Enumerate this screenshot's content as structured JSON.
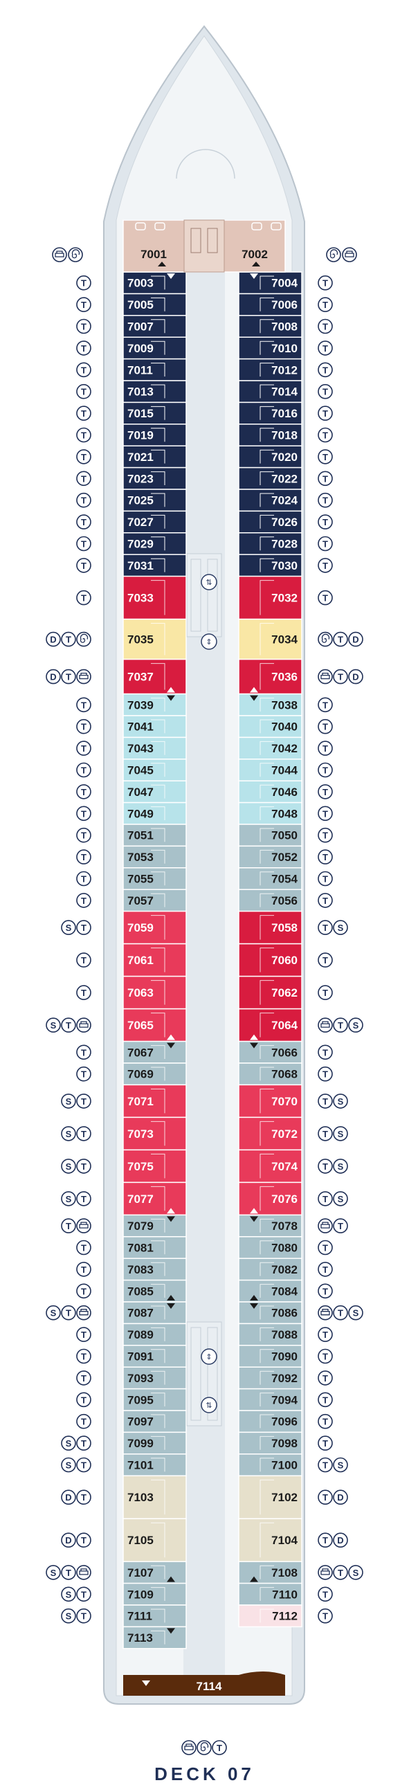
{
  "deck": {
    "title": "DECK 07"
  },
  "colors": {
    "navy": "#1d2b4f",
    "red": "#d81c3f",
    "yellow": "#f9e7a5",
    "pink": "#e83a5a",
    "lightblue": "#b7e3ea",
    "grayblue": "#a8c1c9",
    "tan": "#e6e0cb",
    "salmon": "#e2c5b9",
    "brown": "#5a2b0c",
    "palepink": "#f9e2e6",
    "hull": "#dfe6ec",
    "deckfill": "#f2f5f7",
    "corridor": "#e3e9ee"
  },
  "symbols": {
    "T": "T",
    "S": "S",
    "D": "D"
  },
  "forward_suites": [
    {
      "number": "7001",
      "color": "salmon"
    },
    {
      "number": "7002",
      "color": "salmon"
    }
  ],
  "aft_suite": {
    "number": "7114",
    "color": "brown"
  },
  "port_cabins": [
    {
      "number": "7003",
      "color": "navy",
      "icons": [
        "T"
      ]
    },
    {
      "number": "7005",
      "color": "navy",
      "icons": [
        "T"
      ]
    },
    {
      "number": "7007",
      "color": "navy",
      "icons": [
        "T"
      ]
    },
    {
      "number": "7009",
      "color": "navy",
      "icons": [
        "T"
      ]
    },
    {
      "number": "7011",
      "color": "navy",
      "icons": [
        "T"
      ]
    },
    {
      "number": "7013",
      "color": "navy",
      "icons": [
        "T"
      ]
    },
    {
      "number": "7015",
      "color": "navy",
      "icons": [
        "T"
      ]
    },
    {
      "number": "7019",
      "color": "navy",
      "icons": [
        "T"
      ]
    },
    {
      "number": "7021",
      "color": "navy",
      "icons": [
        "T"
      ]
    },
    {
      "number": "7023",
      "color": "navy",
      "icons": [
        "T"
      ]
    },
    {
      "number": "7025",
      "color": "navy",
      "icons": [
        "T"
      ]
    },
    {
      "number": "7027",
      "color": "navy",
      "icons": [
        "T"
      ]
    },
    {
      "number": "7029",
      "color": "navy",
      "icons": [
        "T"
      ]
    },
    {
      "number": "7031",
      "color": "navy",
      "icons": [
        "T"
      ]
    },
    {
      "number": "7033",
      "color": "red",
      "icons": [
        "T"
      ]
    },
    {
      "number": "7035",
      "color": "yellow",
      "icons": [
        "D",
        "T",
        "spiral"
      ]
    },
    {
      "number": "7037",
      "color": "red",
      "icons": [
        "D",
        "T",
        "sofa"
      ]
    },
    {
      "number": "7039",
      "color": "lightblue",
      "icons": [
        "T"
      ]
    },
    {
      "number": "7041",
      "color": "lightblue",
      "icons": [
        "T"
      ]
    },
    {
      "number": "7043",
      "color": "lightblue",
      "icons": [
        "T"
      ]
    },
    {
      "number": "7045",
      "color": "lightblue",
      "icons": [
        "T"
      ]
    },
    {
      "number": "7047",
      "color": "lightblue",
      "icons": [
        "T"
      ]
    },
    {
      "number": "7049",
      "color": "lightblue",
      "icons": [
        "T"
      ]
    },
    {
      "number": "7051",
      "color": "grayblue",
      "icons": [
        "T"
      ]
    },
    {
      "number": "7053",
      "color": "grayblue",
      "icons": [
        "T"
      ]
    },
    {
      "number": "7055",
      "color": "grayblue",
      "icons": [
        "T"
      ]
    },
    {
      "number": "7057",
      "color": "grayblue",
      "icons": [
        "T"
      ]
    },
    {
      "number": "7059",
      "color": "pink",
      "icons": [
        "S",
        "T"
      ]
    },
    {
      "number": "7061",
      "color": "pink",
      "icons": [
        "T"
      ]
    },
    {
      "number": "7063",
      "color": "pink",
      "icons": [
        "T"
      ]
    },
    {
      "number": "7065",
      "color": "pink",
      "icons": [
        "S",
        "T",
        "sofa"
      ]
    },
    {
      "number": "7067",
      "color": "grayblue",
      "icons": [
        "T"
      ]
    },
    {
      "number": "7069",
      "color": "grayblue",
      "icons": [
        "T"
      ]
    },
    {
      "number": "7071",
      "color": "pink",
      "icons": [
        "S",
        "T"
      ]
    },
    {
      "number": "7073",
      "color": "pink",
      "icons": [
        "S",
        "T"
      ]
    },
    {
      "number": "7075",
      "color": "pink",
      "icons": [
        "S",
        "T"
      ]
    },
    {
      "number": "7077",
      "color": "pink",
      "icons": [
        "S",
        "T"
      ]
    },
    {
      "number": "7079",
      "color": "grayblue",
      "icons": [
        "T",
        "sofa"
      ]
    },
    {
      "number": "7081",
      "color": "grayblue",
      "icons": [
        "T"
      ]
    },
    {
      "number": "7083",
      "color": "grayblue",
      "icons": [
        "T"
      ]
    },
    {
      "number": "7085",
      "color": "grayblue",
      "icons": [
        "T"
      ]
    },
    {
      "number": "7087",
      "color": "grayblue",
      "icons": [
        "S",
        "T",
        "sofa"
      ]
    },
    {
      "number": "7089",
      "color": "grayblue",
      "icons": [
        "T"
      ]
    },
    {
      "number": "7091",
      "color": "grayblue",
      "icons": [
        "T"
      ]
    },
    {
      "number": "7093",
      "color": "grayblue",
      "icons": [
        "T"
      ]
    },
    {
      "number": "7095",
      "color": "grayblue",
      "icons": [
        "T"
      ]
    },
    {
      "number": "7097",
      "color": "grayblue",
      "icons": [
        "T"
      ]
    },
    {
      "number": "7099",
      "color": "grayblue",
      "icons": [
        "S",
        "T"
      ]
    },
    {
      "number": "7101",
      "color": "grayblue",
      "icons": [
        "S",
        "T"
      ]
    },
    {
      "number": "7103",
      "color": "tan",
      "icons": [
        "D",
        "T"
      ]
    },
    {
      "number": "7105",
      "color": "tan",
      "icons": [
        "D",
        "T"
      ]
    },
    {
      "number": "7107",
      "color": "grayblue",
      "icons": [
        "S",
        "T",
        "sofa"
      ]
    },
    {
      "number": "7109",
      "color": "grayblue",
      "icons": [
        "S",
        "T"
      ]
    },
    {
      "number": "7111",
      "color": "grayblue",
      "icons": [
        "S",
        "T"
      ]
    },
    {
      "number": "7113",
      "color": "grayblue",
      "icons": []
    }
  ],
  "starboard_cabins": [
    {
      "number": "7004",
      "color": "navy",
      "icons": [
        "T"
      ]
    },
    {
      "number": "7006",
      "color": "navy",
      "icons": [
        "T"
      ]
    },
    {
      "number": "7008",
      "color": "navy",
      "icons": [
        "T"
      ]
    },
    {
      "number": "7010",
      "color": "navy",
      "icons": [
        "T"
      ]
    },
    {
      "number": "7012",
      "color": "navy",
      "icons": [
        "T"
      ]
    },
    {
      "number": "7014",
      "color": "navy",
      "icons": [
        "T"
      ]
    },
    {
      "number": "7016",
      "color": "navy",
      "icons": [
        "T"
      ]
    },
    {
      "number": "7018",
      "color": "navy",
      "icons": [
        "T"
      ]
    },
    {
      "number": "7020",
      "color": "navy",
      "icons": [
        "T"
      ]
    },
    {
      "number": "7022",
      "color": "navy",
      "icons": [
        "T"
      ]
    },
    {
      "number": "7024",
      "color": "navy",
      "icons": [
        "T"
      ]
    },
    {
      "number": "7026",
      "color": "navy",
      "icons": [
        "T"
      ]
    },
    {
      "number": "7028",
      "color": "navy",
      "icons": [
        "T"
      ]
    },
    {
      "number": "7030",
      "color": "navy",
      "icons": [
        "T"
      ]
    },
    {
      "number": "7032",
      "color": "red",
      "icons": [
        "T"
      ]
    },
    {
      "number": "7034",
      "color": "yellow",
      "icons": [
        "spiral",
        "T",
        "D"
      ]
    },
    {
      "number": "7036",
      "color": "red",
      "icons": [
        "sofa",
        "T",
        "D"
      ]
    },
    {
      "number": "7038",
      "color": "lightblue",
      "icons": [
        "T"
      ]
    },
    {
      "number": "7040",
      "color": "lightblue",
      "icons": [
        "T"
      ]
    },
    {
      "number": "7042",
      "color": "lightblue",
      "icons": [
        "T"
      ]
    },
    {
      "number": "7044",
      "color": "lightblue",
      "icons": [
        "T"
      ]
    },
    {
      "number": "7046",
      "color": "lightblue",
      "icons": [
        "T"
      ]
    },
    {
      "number": "7048",
      "color": "lightblue",
      "icons": [
        "T"
      ]
    },
    {
      "number": "7050",
      "color": "grayblue",
      "icons": [
        "T"
      ]
    },
    {
      "number": "7052",
      "color": "grayblue",
      "icons": [
        "T"
      ]
    },
    {
      "number": "7054",
      "color": "grayblue",
      "icons": [
        "T"
      ]
    },
    {
      "number": "7056",
      "color": "grayblue",
      "icons": [
        "T"
      ]
    },
    {
      "number": "7058",
      "color": "red",
      "icons": [
        "T",
        "S"
      ]
    },
    {
      "number": "7060",
      "color": "red",
      "icons": [
        "T"
      ]
    },
    {
      "number": "7062",
      "color": "red",
      "icons": [
        "T"
      ]
    },
    {
      "number": "7064",
      "color": "red",
      "icons": [
        "sofa",
        "T",
        "S"
      ]
    },
    {
      "number": "7066",
      "color": "grayblue",
      "icons": [
        "T"
      ]
    },
    {
      "number": "7068",
      "color": "grayblue",
      "icons": [
        "T"
      ]
    },
    {
      "number": "7070",
      "color": "pink",
      "icons": [
        "T",
        "S"
      ]
    },
    {
      "number": "7072",
      "color": "pink",
      "icons": [
        "T",
        "S"
      ]
    },
    {
      "number": "7074",
      "color": "pink",
      "icons": [
        "T",
        "S"
      ]
    },
    {
      "number": "7076",
      "color": "pink",
      "icons": [
        "T",
        "S"
      ]
    },
    {
      "number": "7078",
      "color": "grayblue",
      "icons": [
        "sofa",
        "T"
      ]
    },
    {
      "number": "7080",
      "color": "grayblue",
      "icons": [
        "T"
      ]
    },
    {
      "number": "7082",
      "color": "grayblue",
      "icons": [
        "T"
      ]
    },
    {
      "number": "7084",
      "color": "grayblue",
      "icons": [
        "T"
      ]
    },
    {
      "number": "7086",
      "color": "grayblue",
      "icons": [
        "sofa",
        "T",
        "S"
      ]
    },
    {
      "number": "7088",
      "color": "grayblue",
      "icons": [
        "T"
      ]
    },
    {
      "number": "7090",
      "color": "grayblue",
      "icons": [
        "T"
      ]
    },
    {
      "number": "7092",
      "color": "grayblue",
      "icons": [
        "T"
      ]
    },
    {
      "number": "7094",
      "color": "grayblue",
      "icons": [
        "T"
      ]
    },
    {
      "number": "7096",
      "color": "grayblue",
      "icons": [
        "T"
      ]
    },
    {
      "number": "7098",
      "color": "grayblue",
      "icons": [
        "T"
      ]
    },
    {
      "number": "7100",
      "color": "grayblue",
      "icons": [
        "T",
        "S"
      ]
    },
    {
      "number": "7102",
      "color": "tan",
      "icons": [
        "T",
        "D"
      ]
    },
    {
      "number": "7104",
      "color": "tan",
      "icons": [
        "T",
        "D"
      ]
    },
    {
      "number": "7108",
      "color": "grayblue",
      "icons": [
        "sofa",
        "T",
        "S"
      ]
    },
    {
      "number": "7110",
      "color": "grayblue",
      "icons": [
        "T"
      ]
    },
    {
      "number": "7112",
      "color": "palepink",
      "icons": [
        "T"
      ]
    }
  ],
  "bottom_icons": [
    "sofa",
    "spiral",
    "T"
  ]
}
